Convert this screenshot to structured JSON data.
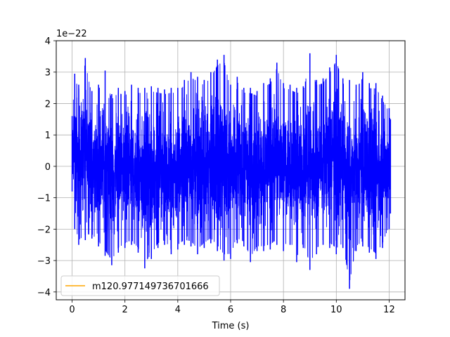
{
  "chart_data": {
    "type": "line",
    "title": "",
    "xlabel": "Time (s)",
    "ylabel": "",
    "y_scale_label": "1e−22",
    "xlim": [
      -0.6,
      12.6
    ],
    "ylim": [
      -4.25,
      4.0
    ],
    "x_ticks": [
      0,
      2,
      4,
      6,
      8,
      10,
      12
    ],
    "x_tick_labels": [
      "0",
      "2",
      "4",
      "6",
      "8",
      "10",
      "12"
    ],
    "y_ticks": [
      -4,
      -3,
      -2,
      -1,
      0,
      1,
      2,
      3,
      4
    ],
    "y_tick_labels": [
      "−4",
      "−3",
      "−2",
      "−1",
      "0",
      "1",
      "2",
      "3",
      "4"
    ],
    "grid": true,
    "legend_position": "lower-left",
    "signal": {
      "color": "#0000ff",
      "x_start": 0.0,
      "x_end": 12.05,
      "envelope_x": [
        0.0,
        0.1,
        0.25,
        0.5,
        0.75,
        1.0,
        1.25,
        1.5,
        1.75,
        2.0,
        2.25,
        2.5,
        2.75,
        3.0,
        3.25,
        3.5,
        3.75,
        4.0,
        4.25,
        4.5,
        4.75,
        5.0,
        5.25,
        5.5,
        5.75,
        6.0,
        6.25,
        6.5,
        6.75,
        7.0,
        7.25,
        7.5,
        7.75,
        8.0,
        8.25,
        8.5,
        8.75,
        9.0,
        9.25,
        9.5,
        9.75,
        10.0,
        10.25,
        10.5,
        10.75,
        11.0,
        11.25,
        11.5,
        11.75,
        12.0,
        12.05
      ],
      "envelope_max": [
        1.6,
        2.95,
        2.6,
        3.45,
        2.4,
        2.6,
        3.05,
        2.3,
        2.5,
        2.4,
        2.6,
        2.5,
        2.5,
        2.55,
        2.5,
        2.45,
        2.5,
        2.5,
        2.75,
        3.0,
        2.85,
        2.75,
        3.0,
        3.4,
        3.55,
        2.6,
        2.85,
        2.5,
        2.5,
        2.4,
        2.65,
        2.8,
        3.3,
        2.65,
        2.6,
        2.5,
        2.55,
        3.6,
        2.75,
        2.8,
        3.15,
        3.55,
        2.8,
        2.75,
        2.6,
        3.0,
        2.65,
        2.65,
        2.25,
        1.85,
        1.5
      ],
      "envelope_min": [
        -0.8,
        -2.0,
        -2.5,
        -2.35,
        -2.3,
        -2.55,
        -2.85,
        -3.15,
        -2.75,
        -2.6,
        -2.5,
        -2.75,
        -3.25,
        -2.95,
        -2.6,
        -2.5,
        -2.8,
        -2.65,
        -2.5,
        -2.55,
        -2.8,
        -2.6,
        -2.45,
        -2.7,
        -3.0,
        -2.95,
        -2.45,
        -2.55,
        -3.05,
        -2.7,
        -2.7,
        -2.65,
        -2.5,
        -2.7,
        -2.5,
        -3.05,
        -2.6,
        -3.3,
        -2.8,
        -2.5,
        -2.6,
        -2.8,
        -2.6,
        -3.9,
        -2.7,
        -2.55,
        -2.75,
        -2.95,
        -2.6,
        -2.0,
        -1.5
      ]
    },
    "series": [
      {
        "name": "m120.977149736701666",
        "color": "#ffa500",
        "values": []
      }
    ]
  }
}
